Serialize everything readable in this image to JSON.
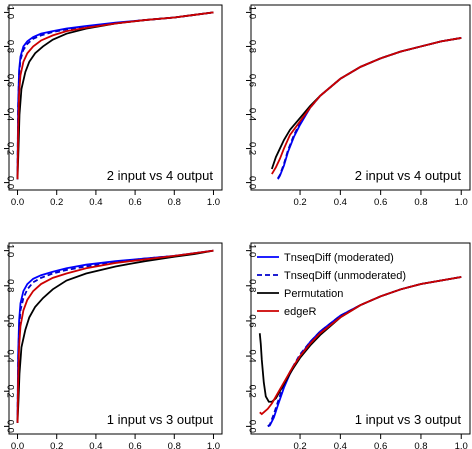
{
  "chart_data": [
    {
      "type": "line",
      "panel_label": "2 input vs 4 output",
      "xlim": [
        0,
        1
      ],
      "ylim": [
        0,
        1
      ],
      "xticks": [
        "0.0",
        "0.2",
        "0.4",
        "0.6",
        "0.8",
        "1.0"
      ],
      "yticks": [
        "0.0",
        "0.2",
        "0.4",
        "0.6",
        "0.8",
        "1.0"
      ],
      "series": [
        {
          "key": "moderated",
          "color": "#0000ff",
          "dash": "solid",
          "x": [
            0.0,
            0.003,
            0.008,
            0.015,
            0.03,
            0.05,
            0.08,
            0.12,
            0.18,
            0.25,
            0.35,
            0.5,
            0.65,
            0.8,
            0.9,
            1.0
          ],
          "y": [
            0.02,
            0.45,
            0.66,
            0.74,
            0.8,
            0.83,
            0.855,
            0.875,
            0.89,
            0.905,
            0.92,
            0.94,
            0.955,
            0.97,
            0.985,
            1.0
          ]
        },
        {
          "key": "unmoderated",
          "color": "#0000cc",
          "dash": "dashed",
          "x": [
            0.0,
            0.003,
            0.008,
            0.015,
            0.03,
            0.05,
            0.08,
            0.12,
            0.18,
            0.25,
            0.35,
            0.5,
            0.65,
            0.8,
            0.9,
            1.0
          ],
          "y": [
            0.02,
            0.43,
            0.63,
            0.72,
            0.78,
            0.815,
            0.845,
            0.865,
            0.885,
            0.9,
            0.915,
            0.935,
            0.955,
            0.97,
            0.985,
            1.0
          ]
        },
        {
          "key": "permutation",
          "color": "#000000",
          "dash": "solid",
          "x": [
            0.0,
            0.005,
            0.01,
            0.02,
            0.04,
            0.06,
            0.09,
            0.13,
            0.18,
            0.25,
            0.35,
            0.5,
            0.65,
            0.8,
            0.9,
            1.0
          ],
          "y": [
            0.02,
            0.2,
            0.4,
            0.55,
            0.65,
            0.71,
            0.76,
            0.8,
            0.84,
            0.875,
            0.905,
            0.935,
            0.955,
            0.97,
            0.985,
            1.0
          ]
        },
        {
          "key": "edger",
          "color": "#cc0000",
          "dash": "solid",
          "x": [
            0.0,
            0.003,
            0.008,
            0.015,
            0.03,
            0.05,
            0.08,
            0.12,
            0.18,
            0.25,
            0.35,
            0.5,
            0.65,
            0.8,
            0.9,
            1.0
          ],
          "y": [
            0.02,
            0.3,
            0.52,
            0.63,
            0.71,
            0.76,
            0.8,
            0.835,
            0.865,
            0.89,
            0.91,
            0.935,
            0.955,
            0.97,
            0.985,
            1.0
          ]
        }
      ]
    },
    {
      "type": "line",
      "panel_label": "2 input vs 4 output",
      "xlim": [
        0,
        1
      ],
      "ylim": [
        0,
        1
      ],
      "xticks": [
        "0.2",
        "0.4",
        "0.6",
        "0.8",
        "1.0"
      ],
      "yticks": [
        "0.0",
        "0.2",
        "0.4",
        "0.6",
        "0.8",
        "1.0"
      ],
      "series": [
        {
          "key": "moderated",
          "color": "#0000ff",
          "dash": "solid",
          "x": [
            0.09,
            0.1,
            0.12,
            0.14,
            0.17,
            0.2,
            0.25,
            0.3,
            0.4,
            0.5,
            0.6,
            0.7,
            0.8,
            0.9,
            1.0
          ],
          "y": [
            0.02,
            0.04,
            0.1,
            0.18,
            0.27,
            0.34,
            0.44,
            0.51,
            0.61,
            0.68,
            0.73,
            0.77,
            0.8,
            0.83,
            0.85
          ]
        },
        {
          "key": "unmoderated",
          "color": "#0000cc",
          "dash": "dashed",
          "x": [
            0.09,
            0.1,
            0.12,
            0.14,
            0.17,
            0.2,
            0.25,
            0.3,
            0.4,
            0.5,
            0.6,
            0.7,
            0.8,
            0.9,
            1.0
          ],
          "y": [
            0.025,
            0.045,
            0.11,
            0.19,
            0.28,
            0.35,
            0.44,
            0.51,
            0.61,
            0.68,
            0.73,
            0.77,
            0.8,
            0.83,
            0.85
          ]
        },
        {
          "key": "permutation",
          "color": "#000000",
          "dash": "solid",
          "x": [
            0.06,
            0.08,
            0.1,
            0.12,
            0.15,
            0.2,
            0.25,
            0.3,
            0.4,
            0.5,
            0.6,
            0.7,
            0.8,
            0.9,
            1.0
          ],
          "y": [
            0.08,
            0.15,
            0.2,
            0.25,
            0.31,
            0.38,
            0.45,
            0.51,
            0.61,
            0.68,
            0.73,
            0.77,
            0.8,
            0.83,
            0.85
          ]
        },
        {
          "key": "edger",
          "color": "#cc0000",
          "dash": "solid",
          "x": [
            0.06,
            0.08,
            0.1,
            0.12,
            0.15,
            0.2,
            0.25,
            0.3,
            0.4,
            0.5,
            0.6,
            0.7,
            0.8,
            0.9,
            1.0
          ],
          "y": [
            0.05,
            0.09,
            0.14,
            0.2,
            0.28,
            0.36,
            0.44,
            0.51,
            0.61,
            0.68,
            0.73,
            0.77,
            0.8,
            0.83,
            0.85
          ]
        }
      ]
    },
    {
      "type": "line",
      "panel_label": "1 input vs 3 output",
      "xlim": [
        0,
        1
      ],
      "ylim": [
        0,
        1
      ],
      "xticks": [
        "0.0",
        "0.2",
        "0.4",
        "0.6",
        "0.8",
        "1.0"
      ],
      "yticks": [
        "0.0",
        "0.2",
        "0.4",
        "0.6",
        "0.8",
        "1.0"
      ],
      "series": [
        {
          "key": "moderated",
          "color": "#0000ff",
          "dash": "solid",
          "x": [
            0.0,
            0.003,
            0.008,
            0.015,
            0.03,
            0.05,
            0.08,
            0.12,
            0.18,
            0.25,
            0.35,
            0.5,
            0.65,
            0.8,
            0.9,
            1.0
          ],
          "y": [
            0.02,
            0.4,
            0.6,
            0.7,
            0.77,
            0.81,
            0.84,
            0.86,
            0.88,
            0.9,
            0.92,
            0.94,
            0.955,
            0.97,
            0.985,
            1.0
          ]
        },
        {
          "key": "unmoderated",
          "color": "#0000cc",
          "dash": "dashed",
          "x": [
            0.0,
            0.003,
            0.008,
            0.015,
            0.03,
            0.05,
            0.08,
            0.12,
            0.18,
            0.25,
            0.35,
            0.5,
            0.65,
            0.8,
            0.9,
            1.0
          ],
          "y": [
            0.02,
            0.35,
            0.55,
            0.66,
            0.73,
            0.78,
            0.82,
            0.845,
            0.87,
            0.89,
            0.91,
            0.935,
            0.955,
            0.97,
            0.985,
            1.0
          ]
        },
        {
          "key": "permutation",
          "color": "#000000",
          "dash": "solid",
          "x": [
            0.0,
            0.005,
            0.01,
            0.02,
            0.04,
            0.06,
            0.09,
            0.13,
            0.18,
            0.25,
            0.35,
            0.5,
            0.65,
            0.8,
            0.9,
            1.0
          ],
          "y": [
            0.02,
            0.15,
            0.3,
            0.45,
            0.55,
            0.62,
            0.68,
            0.73,
            0.78,
            0.83,
            0.87,
            0.91,
            0.94,
            0.965,
            0.98,
            1.0
          ]
        },
        {
          "key": "edger",
          "color": "#cc0000",
          "dash": "solid",
          "x": [
            0.0,
            0.003,
            0.008,
            0.015,
            0.03,
            0.05,
            0.08,
            0.12,
            0.18,
            0.25,
            0.35,
            0.5,
            0.65,
            0.8,
            0.9,
            1.0
          ],
          "y": [
            0.02,
            0.25,
            0.45,
            0.57,
            0.66,
            0.72,
            0.77,
            0.81,
            0.845,
            0.87,
            0.9,
            0.93,
            0.95,
            0.97,
            0.985,
            1.0
          ]
        }
      ]
    },
    {
      "type": "line",
      "panel_label": "1 input vs 3 output",
      "xlim": [
        0,
        1
      ],
      "ylim": [
        0,
        1
      ],
      "xticks": [
        "0.2",
        "0.4",
        "0.6",
        "0.8",
        "1.0"
      ],
      "yticks": [
        "0.0",
        "0.2",
        "0.4",
        "0.6",
        "0.8",
        "1.0"
      ],
      "legend": {
        "position": "top",
        "entries": [
          {
            "key": "moderated",
            "label": "TnseqDiff (moderated)"
          },
          {
            "key": "unmoderated",
            "label": "TnseqDiff (unmoderated)"
          },
          {
            "key": "permutation",
            "label": "Permutation"
          },
          {
            "key": "edger",
            "label": "edgeR"
          }
        ]
      },
      "series": [
        {
          "key": "moderated",
          "color": "#0000ff",
          "dash": "solid",
          "x": [
            0.04,
            0.05,
            0.07,
            0.09,
            0.12,
            0.15,
            0.2,
            0.25,
            0.3,
            0.4,
            0.5,
            0.6,
            0.7,
            0.8,
            0.9,
            1.0
          ],
          "y": [
            0.0,
            0.005,
            0.05,
            0.12,
            0.22,
            0.3,
            0.4,
            0.48,
            0.54,
            0.63,
            0.69,
            0.74,
            0.78,
            0.81,
            0.83,
            0.85
          ]
        },
        {
          "key": "unmoderated",
          "color": "#0000cc",
          "dash": "dashed",
          "x": [
            0.04,
            0.05,
            0.07,
            0.09,
            0.12,
            0.15,
            0.2,
            0.25,
            0.3,
            0.4,
            0.5,
            0.6,
            0.7,
            0.8,
            0.9,
            1.0
          ],
          "y": [
            0.0,
            0.01,
            0.07,
            0.14,
            0.24,
            0.31,
            0.41,
            0.48,
            0.54,
            0.63,
            0.69,
            0.74,
            0.78,
            0.81,
            0.83,
            0.85
          ]
        },
        {
          "key": "permutation",
          "color": "#000000",
          "dash": "solid",
          "x": [
            0.0,
            0.005,
            0.01,
            0.02,
            0.03,
            0.045,
            0.06,
            0.08,
            0.1,
            0.13,
            0.16,
            0.2,
            0.25,
            0.3,
            0.4,
            0.5,
            0.6,
            0.7,
            0.8,
            0.9,
            1.0
          ],
          "y": [
            0.53,
            0.47,
            0.38,
            0.25,
            0.17,
            0.14,
            0.14,
            0.16,
            0.2,
            0.26,
            0.32,
            0.39,
            0.46,
            0.52,
            0.62,
            0.69,
            0.74,
            0.78,
            0.81,
            0.83,
            0.85
          ]
        },
        {
          "key": "edger",
          "color": "#cc0000",
          "dash": "solid",
          "x": [
            0.0,
            0.01,
            0.02,
            0.04,
            0.06,
            0.08,
            0.1,
            0.13,
            0.16,
            0.2,
            0.25,
            0.3,
            0.4,
            0.5,
            0.6,
            0.7,
            0.8,
            0.9,
            1.0
          ],
          "y": [
            0.08,
            0.07,
            0.08,
            0.1,
            0.13,
            0.17,
            0.21,
            0.27,
            0.33,
            0.4,
            0.47,
            0.53,
            0.62,
            0.69,
            0.74,
            0.78,
            0.81,
            0.83,
            0.85
          ]
        }
      ]
    }
  ]
}
